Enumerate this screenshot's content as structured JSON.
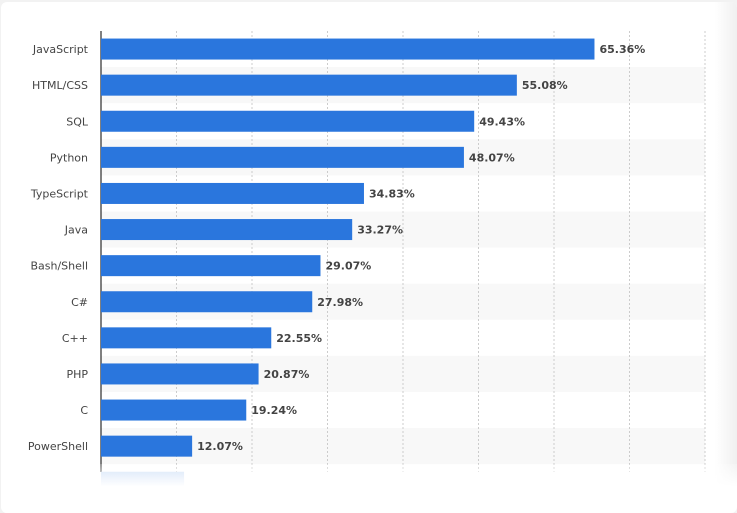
{
  "chart_data": {
    "type": "bar",
    "orientation": "horizontal",
    "categories": [
      "JavaScript",
      "HTML/CSS",
      "SQL",
      "Python",
      "TypeScript",
      "Java",
      "Bash/Shell",
      "C#",
      "C++",
      "PHP",
      "C",
      "PowerShell",
      ""
    ],
    "values": [
      65.36,
      55.08,
      49.43,
      48.07,
      34.83,
      33.27,
      29.07,
      27.98,
      22.55,
      20.87,
      19.24,
      12.07,
      11.0
    ],
    "labels": [
      "65.36%",
      "55.08%",
      "49.43%",
      "48.07%",
      "34.83%",
      "33.27%",
      "29.07%",
      "27.98%",
      "22.55%",
      "20.87%",
      "19.24%",
      "12.07%",
      ""
    ],
    "xlim": [
      0,
      80
    ],
    "grid_step": 10,
    "grid": true,
    "bar_color": "#2a76dd",
    "title": "",
    "xlabel": "",
    "ylabel": ""
  }
}
